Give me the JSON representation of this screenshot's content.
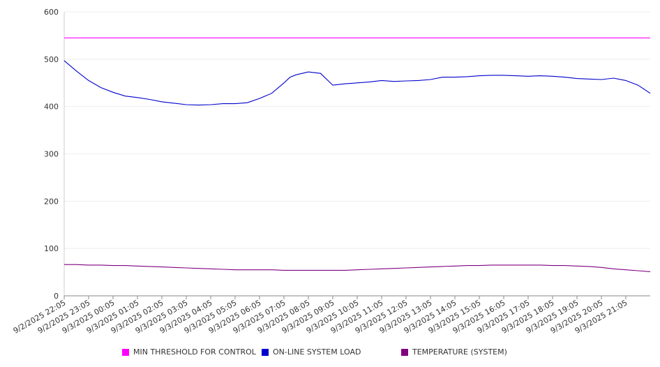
{
  "chart_data": {
    "type": "line",
    "ylim": [
      0,
      600
    ],
    "yticks": [
      0,
      100,
      200,
      300,
      400,
      500,
      600
    ],
    "grid": true,
    "legend_position": "bottom",
    "x_tick_labels": [
      "9/2/2025 22:05",
      "9/2/2025 23:05",
      "9/3/2025 00:05",
      "9/3/2025 01:05",
      "9/3/2025 02:05",
      "9/3/2025 03:05",
      "9/3/2025 04:05",
      "9/3/2025 05:05",
      "9/3/2025 06:05",
      "9/3/2025 07:05",
      "9/3/2025 08:05",
      "9/3/2025 09:05",
      "9/3/2025 10:05",
      "9/3/2025 11:05",
      "9/3/2025 12:05",
      "9/3/2025 13:05",
      "9/3/2025 14:05",
      "9/3/2025 15:05",
      "9/3/2025 16:05",
      "9/3/2025 17:05",
      "9/3/2025 18:05",
      "9/3/2025 19:05",
      "9/3/2025 20:05",
      "9/3/2025 21:05"
    ],
    "x_hours": [
      0,
      0.5,
      1,
      1.5,
      2,
      2.5,
      3,
      3.5,
      4,
      4.5,
      5,
      5.5,
      6,
      6.5,
      7,
      7.5,
      8,
      8.5,
      9,
      9.25,
      9.5,
      10,
      10.5,
      11,
      11.5,
      12,
      12.5,
      13,
      13.5,
      14,
      14.5,
      15,
      15.5,
      16,
      16.5,
      17,
      17.5,
      18,
      18.5,
      19,
      19.5,
      20,
      20.5,
      21,
      21.5,
      22,
      22.5,
      23,
      23.5,
      24
    ],
    "series": [
      {
        "name": "MIN THRESHOLD FOR CONTROL",
        "color": "#ff00ff",
        "values": [
          545,
          545,
          545,
          545,
          545,
          545,
          545,
          545,
          545,
          545,
          545,
          545,
          545,
          545,
          545,
          545,
          545,
          545,
          545,
          545,
          545,
          545,
          545,
          545,
          545,
          545,
          545,
          545,
          545,
          545,
          545,
          545,
          545,
          545,
          545,
          545,
          545,
          545,
          545,
          545,
          545,
          545,
          545,
          545,
          545,
          545,
          545,
          545,
          545,
          545
        ]
      },
      {
        "name": "ON-LINE SYSTEM LOAD",
        "color": "#0000cc",
        "values": [
          497,
          475,
          455,
          440,
          430,
          422,
          419,
          415,
          410,
          407,
          404,
          403,
          404,
          406,
          406,
          408,
          417,
          428,
          450,
          462,
          467,
          473,
          470,
          445,
          448,
          450,
          452,
          455,
          453,
          454,
          455,
          457,
          462,
          462,
          463,
          465,
          466,
          466,
          465,
          464,
          465,
          464,
          462,
          459,
          458,
          457,
          460,
          455,
          445,
          428
        ]
      },
      {
        "name": "TEMPERATURE (SYSTEM)",
        "color": "#800080",
        "values": [
          66,
          66,
          65,
          65,
          64,
          64,
          63,
          62,
          61,
          60,
          59,
          58,
          57,
          56,
          55,
          55,
          55,
          55,
          54,
          54,
          54,
          54,
          54,
          54,
          54,
          55,
          56,
          57,
          58,
          59,
          60,
          61,
          62,
          63,
          64,
          64,
          65,
          65,
          65,
          65,
          65,
          64,
          64,
          63,
          62,
          60,
          57,
          55,
          53,
          51
        ]
      }
    ]
  }
}
